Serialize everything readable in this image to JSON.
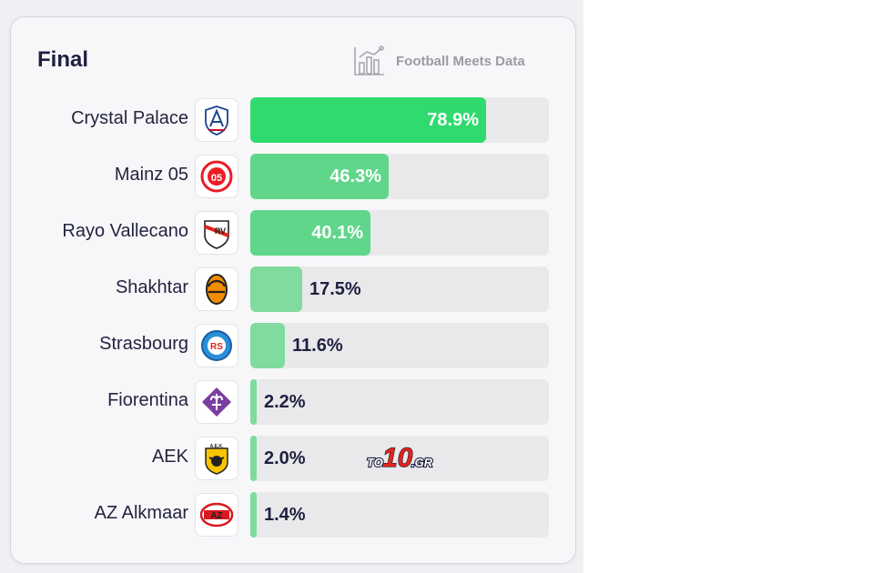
{
  "card": {
    "title": "Final",
    "brand": "Football Meets Data"
  },
  "watermark": {
    "prefix": "TO",
    "number": "10",
    "suffix": ".GR"
  },
  "colors": {
    "bar_strong": "#2fdb6f",
    "bar_mid": "#5fd68a",
    "bar_light": "#7fdb9e",
    "track": "#e9e9eb",
    "text": "#23243f"
  },
  "chart_data": {
    "type": "bar",
    "orientation": "horizontal",
    "title": "Final",
    "xlim": [
      0,
      100
    ],
    "unit": "%",
    "categories": [
      "Crystal Palace",
      "Mainz 05",
      "Rayo Vallecano",
      "Shakhtar",
      "Strasbourg",
      "Fiorentina",
      "AEK",
      "AZ Alkmaar"
    ],
    "values": [
      78.9,
      46.3,
      40.1,
      17.5,
      11.6,
      2.2,
      2.0,
      1.4
    ],
    "labels": [
      "78.9%",
      "46.3%",
      "40.1%",
      "17.5%",
      "11.6%",
      "2.2%",
      "2.0%",
      "1.4%"
    ],
    "logos": [
      "crystal-palace-crest-icon",
      "mainz-05-crest-icon",
      "rayo-vallecano-crest-icon",
      "shakhtar-crest-icon",
      "strasbourg-crest-icon",
      "fiorentina-crest-icon",
      "aek-crest-icon",
      "az-alkmaar-crest-icon"
    ],
    "logo_text": [
      "",
      "05",
      "RV",
      "",
      "RS",
      "",
      "A.E.K.",
      "AZ"
    ]
  }
}
